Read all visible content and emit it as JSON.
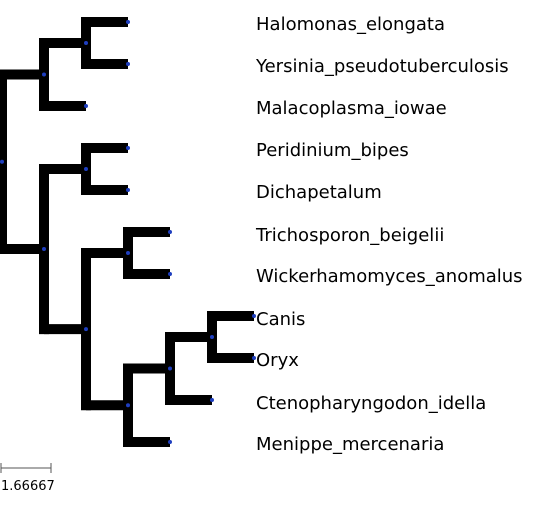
{
  "tree": {
    "leaves": [
      {
        "id": "L1",
        "label": "Halomonas_elongata"
      },
      {
        "id": "L2",
        "label": "Yersinia_pseudotuberculosis"
      },
      {
        "id": "L3",
        "label": "Malacoplasma_iowae"
      },
      {
        "id": "L4",
        "label": "Peridinium_bipes"
      },
      {
        "id": "L5",
        "label": "Dichapetalum"
      },
      {
        "id": "L6",
        "label": "Trichosporon_beigelii"
      },
      {
        "id": "L7",
        "label": "Wickerhamomyces_anomalus"
      },
      {
        "id": "L8",
        "label": "Canis"
      },
      {
        "id": "L9",
        "label": "Oryx"
      },
      {
        "id": "L10",
        "label": "Ctenopharyngodon_idella"
      },
      {
        "id": "L11",
        "label": "Menippe_mercenaria"
      }
    ],
    "topology": "((((Halomonas_elongata,Yersinia_pseudotuberculosis),Malacoplasma_iowae),((Peridinium_bipes,Dichapetalum),((Trichosporon_beigelii,Wickerhamomyces_anomalus),(((Canis,Oryx),Ctenopharyngodon_idella),Menippe_mercenaria)))));"
  },
  "scale_bar": {
    "label": "1.66667"
  },
  "colors": {
    "branch": "#000000",
    "node_dot": "#1f3fbf",
    "scale_bar": "#555555"
  }
}
